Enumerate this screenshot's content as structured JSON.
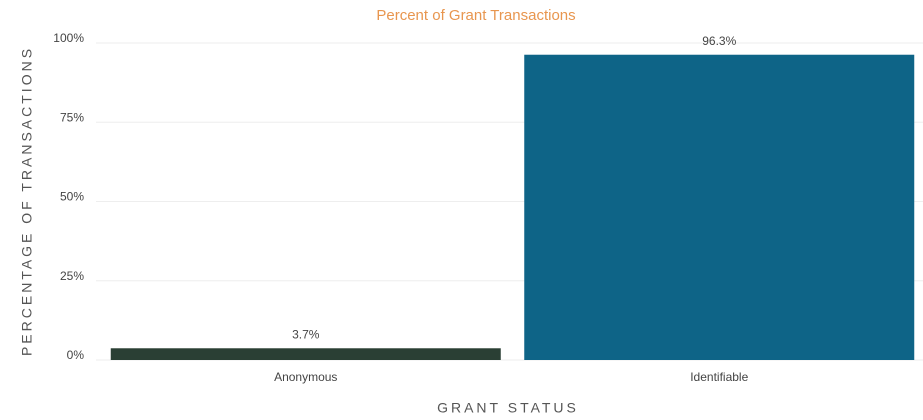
{
  "chart_data": {
    "type": "bar",
    "title": "Percent of Grant Transactions",
    "x_label": "GRANT STATUS",
    "y_label": "PERCENTAGE OF TRANSACTIONS",
    "categories": [
      "Anonymous",
      "Identifiable"
    ],
    "values": [
      3.7,
      96.3
    ],
    "value_labels": [
      "3.7%",
      "96.3%"
    ],
    "colors": [
      "#2a3f34",
      "#0e6487"
    ],
    "ylim": [
      0,
      100
    ],
    "yticks": [
      {
        "value": 0,
        "label": "0%"
      },
      {
        "value": 25,
        "label": "25%"
      },
      {
        "value": 50,
        "label": "50%"
      },
      {
        "value": 75,
        "label": "75%"
      },
      {
        "value": 100,
        "label": "100%"
      }
    ],
    "grid": true
  }
}
